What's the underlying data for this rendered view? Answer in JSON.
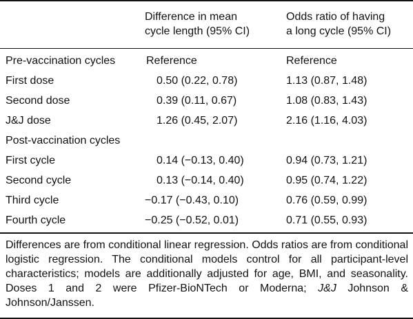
{
  "table": {
    "headers": {
      "col1_line1": "Difference in mean",
      "col1_line2": "cycle length (95% CI)",
      "col2_line1": "Odds ratio of having",
      "col2_line2": "a long cycle (95% CI)"
    },
    "rows": [
      {
        "label": "Pre-vaccination cycles",
        "diff": "Reference",
        "odds": "Reference"
      },
      {
        "label": "First dose",
        "diff": "0.50 (0.22, 0.78)",
        "odds": "1.13 (0.87, 1.48)"
      },
      {
        "label": "Second dose",
        "diff": "0.39 (0.11, 0.67)",
        "odds": "1.08 (0.83, 1.43)"
      },
      {
        "label": "J&J dose",
        "diff": "1.26 (0.45, 2.07)",
        "odds": "2.16 (1.16, 4.03)"
      },
      {
        "label": "Post-vaccination cycles",
        "diff": "",
        "odds": ""
      },
      {
        "label": "First cycle",
        "diff": "0.14 (−0.13, 0.40)",
        "odds": "0.94 (0.73, 1.21)"
      },
      {
        "label": "Second cycle",
        "diff": "0.13 (−0.14, 0.40)",
        "odds": "0.95 (0.74, 1.22)"
      },
      {
        "label": "Third cycle",
        "diff": "−0.17 (−0.43, 0.10)",
        "odds": "0.76 (0.59, 0.99)"
      },
      {
        "label": "Fourth cycle",
        "diff": "−0.25 (−0.52, 0.01)",
        "odds": "0.71 (0.55, 0.93)"
      }
    ]
  },
  "footnote": {
    "text_main": "Differences are from conditional linear regression. Odds ratios are from conditional logistic regression. The conditional models control for all participant-level characteristics; models are additionally adjusted for age, BMI, and seasonality. Doses 1 and 2 were Pfizer-BioNTech or Moderna; ",
    "abbr": "J&J",
    "abbr_expansion": " Johnson & Johnson/Janssen."
  }
}
